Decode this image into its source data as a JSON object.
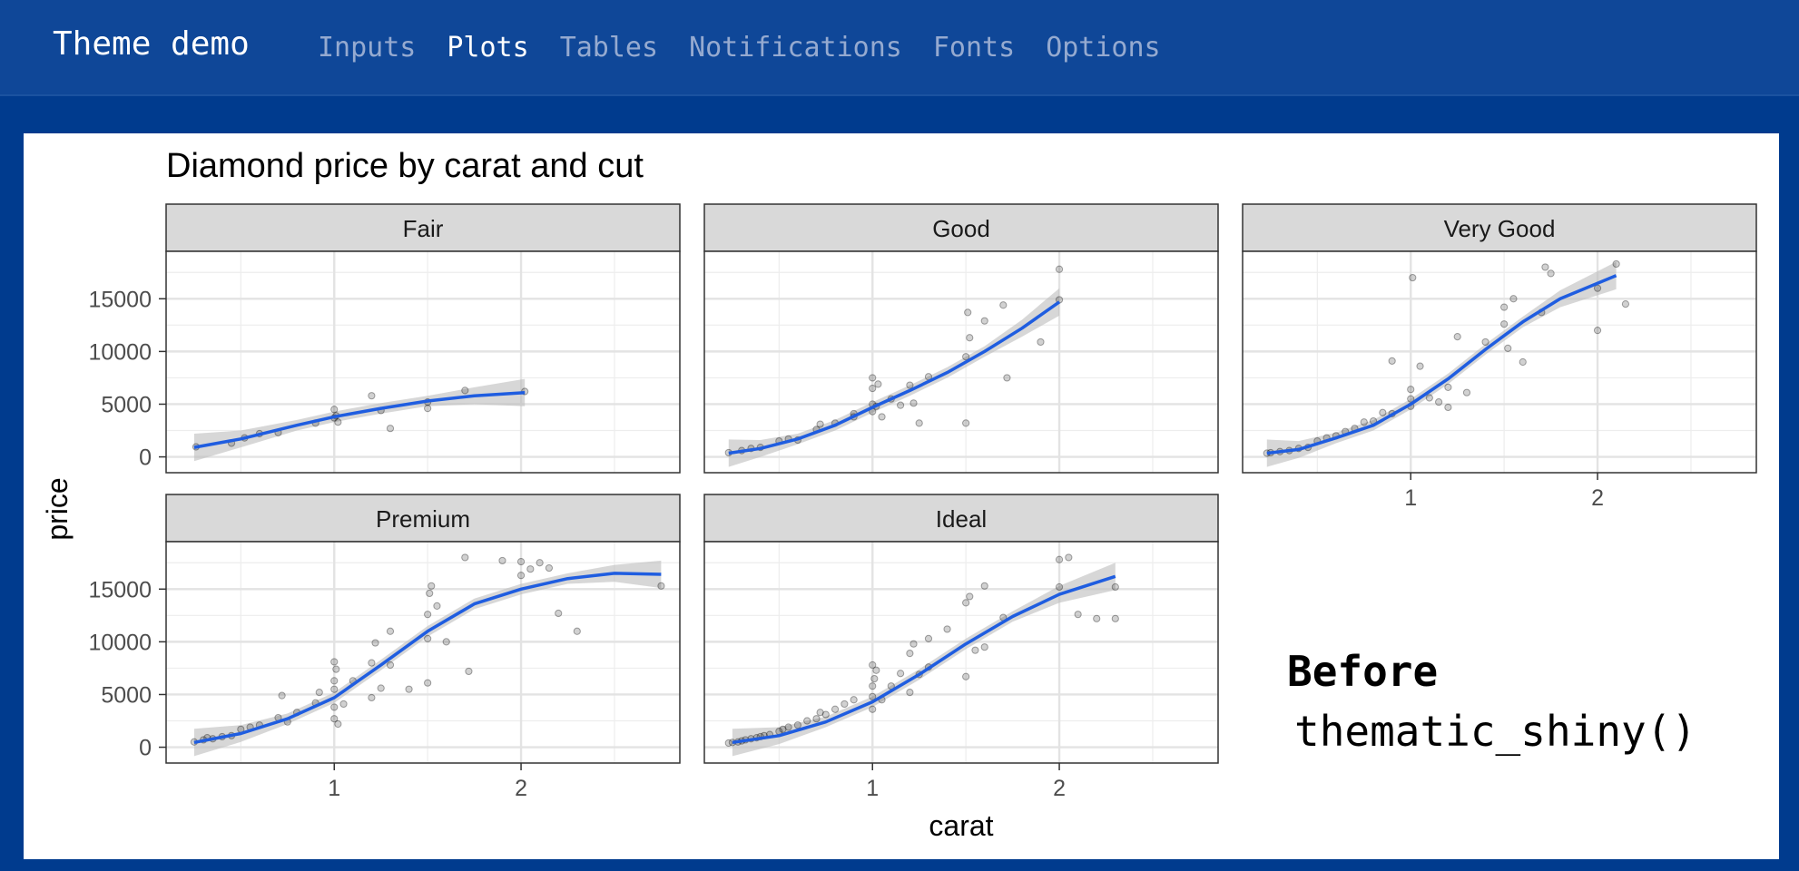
{
  "navbar": {
    "brand": "Theme demo",
    "items": [
      {
        "label": "Inputs",
        "active": false
      },
      {
        "label": "Plots",
        "active": true
      },
      {
        "label": "Tables",
        "active": false
      },
      {
        "label": "Notifications",
        "active": false
      },
      {
        "label": "Fonts",
        "active": false
      },
      {
        "label": "Options",
        "active": false
      }
    ]
  },
  "annotation": {
    "before": "Before",
    "code": "thematic_shiny()"
  },
  "colors": {
    "page_bg": "#003b8e",
    "navbar_bg": "#0f4798",
    "nav_active": "#ffffff",
    "nav_inactive": "#95aad0",
    "strip_bg": "#d9d9d9",
    "smooth_line": "#1f5de0",
    "ribbon": "#bdbdbd",
    "point": "#000000"
  },
  "chart_data": {
    "type": "scatter",
    "title": "Diamond price by carat and cut",
    "xlabel": "carat",
    "ylabel": "price",
    "xlim": [
      0.1,
      2.85
    ],
    "ylim": [
      -1500,
      19500
    ],
    "x_ticks": [
      1,
      2
    ],
    "y_ticks": [
      0,
      5000,
      10000,
      15000
    ],
    "grid": true,
    "smooth": "loess with confidence band",
    "facets": [
      {
        "name": "Fair",
        "smooth": [
          [
            0.25,
            900
          ],
          [
            0.5,
            1700
          ],
          [
            0.8,
            3000
          ],
          [
            1.0,
            3800
          ],
          [
            1.25,
            4600
          ],
          [
            1.5,
            5300
          ],
          [
            1.75,
            5800
          ],
          [
            2.02,
            6100
          ]
        ],
        "points": [
          [
            0.26,
            950
          ],
          [
            0.45,
            1300
          ],
          [
            0.52,
            1800
          ],
          [
            0.6,
            2200
          ],
          [
            0.7,
            2300
          ],
          [
            0.9,
            3200
          ],
          [
            1.0,
            3700
          ],
          [
            1.0,
            4500
          ],
          [
            1.01,
            3900
          ],
          [
            1.02,
            3300
          ],
          [
            1.2,
            5800
          ],
          [
            1.25,
            4400
          ],
          [
            1.3,
            2700
          ],
          [
            1.5,
            4600
          ],
          [
            1.5,
            5200
          ],
          [
            1.7,
            6300
          ],
          [
            2.02,
            6200
          ]
        ]
      },
      {
        "name": "Good",
        "smooth": [
          [
            0.23,
            350
          ],
          [
            0.4,
            800
          ],
          [
            0.6,
            1700
          ],
          [
            0.8,
            3000
          ],
          [
            1.0,
            4700
          ],
          [
            1.2,
            6300
          ],
          [
            1.4,
            8000
          ],
          [
            1.6,
            10000
          ],
          [
            1.8,
            12200
          ],
          [
            2.0,
            14700
          ]
        ],
        "points": [
          [
            0.23,
            400
          ],
          [
            0.3,
            600
          ],
          [
            0.35,
            800
          ],
          [
            0.4,
            900
          ],
          [
            0.5,
            1500
          ],
          [
            0.55,
            1700
          ],
          [
            0.6,
            1600
          ],
          [
            0.7,
            2600
          ],
          [
            0.72,
            3100
          ],
          [
            0.8,
            3200
          ],
          [
            0.9,
            3800
          ],
          [
            0.9,
            4100
          ],
          [
            1.0,
            4300
          ],
          [
            1.0,
            6500
          ],
          [
            1.0,
            7500
          ],
          [
            1.0,
            5000
          ],
          [
            1.02,
            4800
          ],
          [
            1.03,
            6900
          ],
          [
            1.05,
            3800
          ],
          [
            1.1,
            5500
          ],
          [
            1.15,
            4900
          ],
          [
            1.2,
            6800
          ],
          [
            1.22,
            5100
          ],
          [
            1.25,
            3200
          ],
          [
            1.3,
            7600
          ],
          [
            1.5,
            3200
          ],
          [
            1.5,
            9500
          ],
          [
            1.51,
            13700
          ],
          [
            1.52,
            11300
          ],
          [
            1.6,
            12900
          ],
          [
            1.7,
            14400
          ],
          [
            1.72,
            7500
          ],
          [
            1.9,
            10900
          ],
          [
            2.0,
            17800
          ],
          [
            2.0,
            14900
          ]
        ]
      },
      {
        "name": "Very Good",
        "smooth": [
          [
            0.23,
            350
          ],
          [
            0.4,
            700
          ],
          [
            0.6,
            1800
          ],
          [
            0.8,
            3000
          ],
          [
            1.0,
            5000
          ],
          [
            1.2,
            7400
          ],
          [
            1.4,
            10200
          ],
          [
            1.6,
            12800
          ],
          [
            1.8,
            15000
          ],
          [
            2.1,
            17200
          ]
        ],
        "points": [
          [
            0.23,
            350
          ],
          [
            0.25,
            400
          ],
          [
            0.3,
            500
          ],
          [
            0.35,
            600
          ],
          [
            0.4,
            800
          ],
          [
            0.45,
            900
          ],
          [
            0.5,
            1500
          ],
          [
            0.55,
            1800
          ],
          [
            0.6,
            2000
          ],
          [
            0.65,
            2400
          ],
          [
            0.7,
            2700
          ],
          [
            0.75,
            3300
          ],
          [
            0.8,
            3400
          ],
          [
            0.85,
            4200
          ],
          [
            0.9,
            4100
          ],
          [
            0.9,
            9100
          ],
          [
            1.0,
            4800
          ],
          [
            1.0,
            5500
          ],
          [
            1.0,
            6400
          ],
          [
            1.01,
            17000
          ],
          [
            1.05,
            8600
          ],
          [
            1.1,
            5600
          ],
          [
            1.15,
            5200
          ],
          [
            1.2,
            4700
          ],
          [
            1.2,
            6600
          ],
          [
            1.25,
            11400
          ],
          [
            1.3,
            6100
          ],
          [
            1.4,
            10900
          ],
          [
            1.5,
            12600
          ],
          [
            1.5,
            14200
          ],
          [
            1.52,
            10300
          ],
          [
            1.55,
            15000
          ],
          [
            1.6,
            9000
          ],
          [
            1.7,
            13700
          ],
          [
            1.72,
            18000
          ],
          [
            1.75,
            17400
          ],
          [
            2.0,
            12000
          ],
          [
            2.0,
            16000
          ],
          [
            2.1,
            18300
          ],
          [
            2.15,
            14500
          ]
        ]
      },
      {
        "name": "Premium",
        "smooth": [
          [
            0.25,
            450
          ],
          [
            0.5,
            1300
          ],
          [
            0.75,
            2700
          ],
          [
            1.0,
            4700
          ],
          [
            1.25,
            7800
          ],
          [
            1.5,
            11000
          ],
          [
            1.75,
            13600
          ],
          [
            2.0,
            15000
          ],
          [
            2.25,
            16000
          ],
          [
            2.5,
            16500
          ],
          [
            2.75,
            16400
          ]
        ],
        "points": [
          [
            0.25,
            500
          ],
          [
            0.3,
            700
          ],
          [
            0.32,
            900
          ],
          [
            0.35,
            800
          ],
          [
            0.4,
            1000
          ],
          [
            0.45,
            1100
          ],
          [
            0.5,
            1700
          ],
          [
            0.55,
            1900
          ],
          [
            0.6,
            2100
          ],
          [
            0.7,
            2800
          ],
          [
            0.72,
            4900
          ],
          [
            0.75,
            2400
          ],
          [
            0.8,
            3300
          ],
          [
            0.9,
            4200
          ],
          [
            0.92,
            5200
          ],
          [
            1.0,
            2700
          ],
          [
            1.0,
            3800
          ],
          [
            1.0,
            5500
          ],
          [
            1.0,
            6300
          ],
          [
            1.0,
            8100
          ],
          [
            1.01,
            7400
          ],
          [
            1.02,
            2200
          ],
          [
            1.05,
            4100
          ],
          [
            1.1,
            6300
          ],
          [
            1.2,
            4700
          ],
          [
            1.2,
            8000
          ],
          [
            1.22,
            9900
          ],
          [
            1.25,
            5600
          ],
          [
            1.3,
            7800
          ],
          [
            1.3,
            11000
          ],
          [
            1.4,
            5500
          ],
          [
            1.5,
            6100
          ],
          [
            1.5,
            10300
          ],
          [
            1.5,
            12600
          ],
          [
            1.51,
            14600
          ],
          [
            1.52,
            15300
          ],
          [
            1.55,
            13400
          ],
          [
            1.6,
            10000
          ],
          [
            1.7,
            18000
          ],
          [
            1.72,
            7200
          ],
          [
            1.9,
            17700
          ],
          [
            2.0,
            16300
          ],
          [
            2.0,
            17600
          ],
          [
            2.05,
            16900
          ],
          [
            2.1,
            17500
          ],
          [
            2.15,
            17000
          ],
          [
            2.2,
            12700
          ],
          [
            2.3,
            11000
          ],
          [
            2.75,
            15300
          ]
        ]
      },
      {
        "name": "Ideal",
        "smooth": [
          [
            0.25,
            450
          ],
          [
            0.5,
            1100
          ],
          [
            0.75,
            2400
          ],
          [
            1.0,
            4300
          ],
          [
            1.25,
            6900
          ],
          [
            1.5,
            9800
          ],
          [
            1.75,
            12400
          ],
          [
            2.0,
            14500
          ],
          [
            2.3,
            16200
          ]
        ],
        "points": [
          [
            0.23,
            400
          ],
          [
            0.25,
            450
          ],
          [
            0.28,
            500
          ],
          [
            0.3,
            600
          ],
          [
            0.32,
            700
          ],
          [
            0.35,
            800
          ],
          [
            0.38,
            900
          ],
          [
            0.4,
            1000
          ],
          [
            0.42,
            1100
          ],
          [
            0.45,
            1200
          ],
          [
            0.5,
            1500
          ],
          [
            0.52,
            1700
          ],
          [
            0.55,
            1900
          ],
          [
            0.6,
            2100
          ],
          [
            0.65,
            2500
          ],
          [
            0.7,
            2700
          ],
          [
            0.72,
            3300
          ],
          [
            0.75,
            3100
          ],
          [
            0.8,
            3600
          ],
          [
            0.85,
            4100
          ],
          [
            0.9,
            4500
          ],
          [
            1.0,
            3600
          ],
          [
            1.0,
            4800
          ],
          [
            1.0,
            5800
          ],
          [
            1.0,
            7800
          ],
          [
            1.01,
            6500
          ],
          [
            1.02,
            7300
          ],
          [
            1.05,
            4500
          ],
          [
            1.1,
            5800
          ],
          [
            1.15,
            7000
          ],
          [
            1.2,
            5200
          ],
          [
            1.2,
            8900
          ],
          [
            1.22,
            9800
          ],
          [
            1.25,
            6900
          ],
          [
            1.3,
            10300
          ],
          [
            1.3,
            7600
          ],
          [
            1.4,
            11200
          ],
          [
            1.5,
            6700
          ],
          [
            1.5,
            13700
          ],
          [
            1.52,
            14300
          ],
          [
            1.55,
            9200
          ],
          [
            1.6,
            15300
          ],
          [
            1.6,
            9500
          ],
          [
            1.7,
            12300
          ],
          [
            2.0,
            17800
          ],
          [
            2.0,
            15200
          ],
          [
            2.05,
            18000
          ],
          [
            2.1,
            12600
          ],
          [
            2.2,
            12200
          ],
          [
            2.3,
            15200
          ],
          [
            2.3,
            12200
          ]
        ]
      }
    ]
  }
}
